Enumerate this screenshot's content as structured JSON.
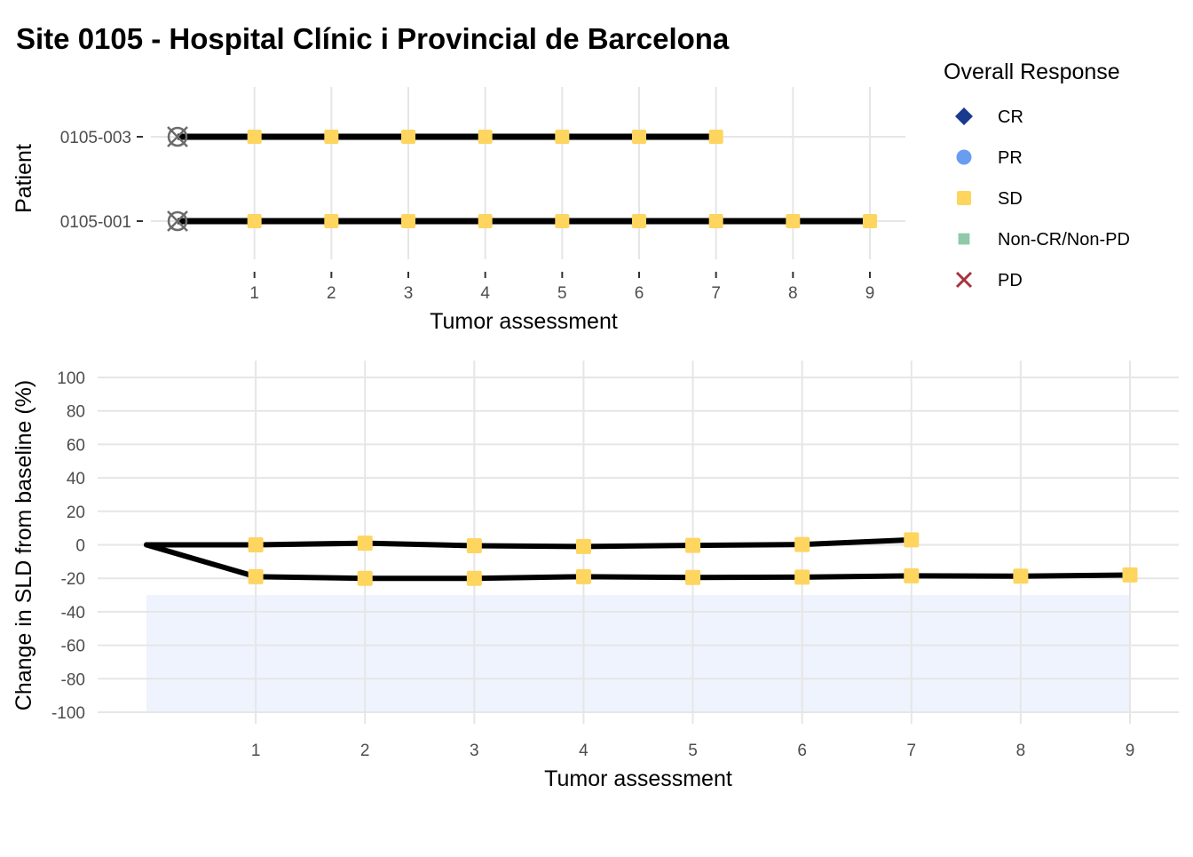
{
  "title": "Site 0105 - Hospital Clínic i Provincial de Barcelona",
  "colors": {
    "line": "#000000",
    "grid": "#e6e6e6",
    "band": "#eef3fd",
    "baseline_marker": "#6b6b6b",
    "tick_text": "#4d4d4d"
  },
  "legend": {
    "title": "Overall Response",
    "items": [
      {
        "label": "CR",
        "shape": "diamond",
        "color": "#1a3a8f"
      },
      {
        "label": "PR",
        "shape": "circle",
        "color": "#6a9cf2"
      },
      {
        "label": "SD",
        "shape": "square",
        "color": "#fdd55f"
      },
      {
        "label": "Non-CR/Non-PD",
        "shape": "square-small",
        "color": "#8fcaa8"
      },
      {
        "label": "PD",
        "shape": "cross",
        "color": "#a5333d"
      }
    ]
  },
  "chart_data": [
    {
      "type": "line",
      "name": "swimmer",
      "xlabel": "Tumor assessment",
      "ylabel": "Patient",
      "x_ticks": [
        1,
        2,
        3,
        4,
        5,
        6,
        7,
        8,
        9
      ],
      "xlim": [
        0,
        9
      ],
      "grid": true,
      "categories": [
        "0105-001",
        "0105-003"
      ],
      "series": [
        {
          "patient": "0105-001",
          "baseline": 0,
          "x": [
            1,
            2,
            3,
            4,
            5,
            6,
            7,
            8,
            9
          ],
          "response": [
            "SD",
            "SD",
            "SD",
            "SD",
            "SD",
            "SD",
            "SD",
            "SD",
            "SD"
          ]
        },
        {
          "patient": "0105-003",
          "baseline": 0,
          "x": [
            1,
            2,
            3,
            4,
            5,
            6,
            7
          ],
          "response": [
            "SD",
            "SD",
            "SD",
            "SD",
            "SD",
            "SD",
            "SD"
          ]
        }
      ]
    },
    {
      "type": "line",
      "name": "spider",
      "xlabel": "Tumor assessment",
      "ylabel": "Change in SLD from baseline (%)",
      "x_ticks": [
        1,
        2,
        3,
        4,
        5,
        6,
        7,
        8,
        9
      ],
      "xlim": [
        0,
        9
      ],
      "y_ticks": [
        100,
        80,
        60,
        40,
        20,
        0,
        -20,
        -40,
        -60,
        -80,
        -100
      ],
      "ylim": [
        -100,
        100
      ],
      "grid": true,
      "shaded_band": {
        "y_from": -100,
        "y_to": -30
      },
      "series": [
        {
          "patient": "0105-003",
          "x": [
            0,
            1,
            2,
            3,
            4,
            5,
            6,
            7
          ],
          "y": [
            0,
            0,
            1,
            -0.5,
            -1,
            -0.3,
            0.2,
            3
          ],
          "response": [
            "",
            "SD",
            "SD",
            "SD",
            "SD",
            "SD",
            "SD",
            "SD"
          ]
        },
        {
          "patient": "0105-001",
          "x": [
            0,
            1,
            2,
            3,
            4,
            5,
            6,
            7,
            8,
            9
          ],
          "y": [
            0,
            -19,
            -20,
            -20,
            -19,
            -19.5,
            -19.3,
            -18.5,
            -18.7,
            -18
          ],
          "response": [
            "",
            "SD",
            "SD",
            "SD",
            "SD",
            "SD",
            "SD",
            "SD",
            "SD",
            "SD"
          ]
        }
      ]
    }
  ]
}
